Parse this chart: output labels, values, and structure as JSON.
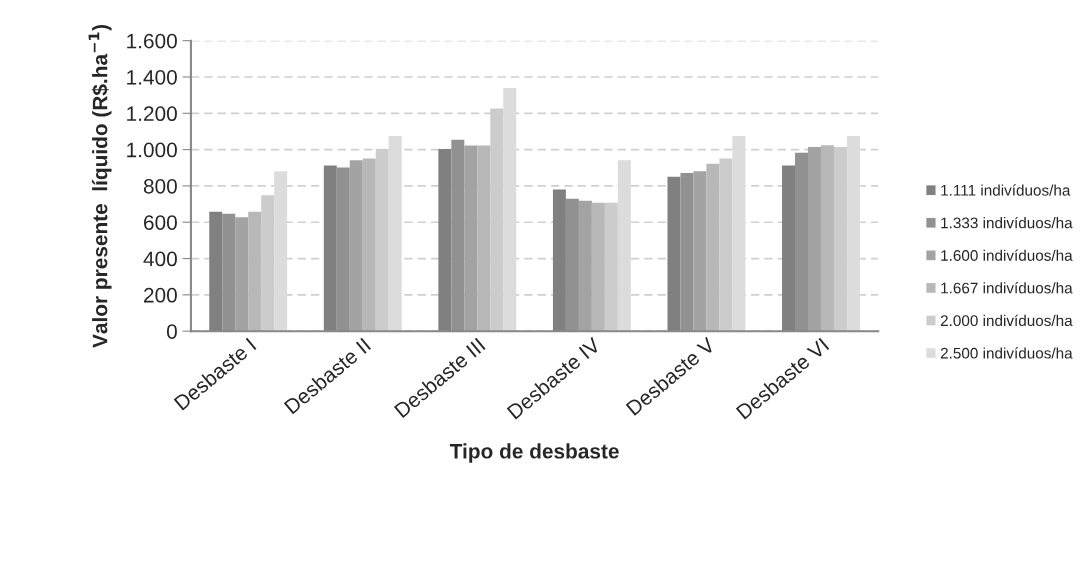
{
  "chart_data": {
    "type": "bar",
    "xlabel": "Tipo de desbaste",
    "ylabel": "Valor presente  líquido (R$.ha$^{−1}$)",
    "categories": [
      "Desbaste I",
      "Desbaste II",
      "Desbaste III",
      "Desbaste IV",
      "Desbaste V",
      "Desbaste VI"
    ],
    "series": [
      {
        "name": "1.111 indivíduos/ha",
        "color": "#808080",
        "values": [
          658,
          912,
          1003,
          780,
          851,
          912
        ]
      },
      {
        "name": "1.333 indivíduos/ha",
        "color": "#919191",
        "values": [
          647,
          902,
          1054,
          729,
          871,
          983
        ]
      },
      {
        "name": "1.600 indivíduos/ha",
        "color": "#a3a3a3",
        "values": [
          627,
          942,
          1022,
          719,
          881,
          1014
        ]
      },
      {
        "name": "1.667 indivíduos/ha",
        "color": "#b8b8b8",
        "values": [
          658,
          951,
          1022,
          707,
          922,
          1024
        ]
      },
      {
        "name": "2.000 indivíduos/ha",
        "color": "#cccccc",
        "values": [
          749,
          1003,
          1227,
          707,
          951,
          1014
        ]
      },
      {
        "name": "2.500 indivíduos/ha",
        "color": "#dcdcdc",
        "values": [
          881,
          1075,
          1339,
          942,
          1075,
          1075
        ]
      }
    ],
    "ylim": [
      0,
      1600
    ],
    "yticks": [
      0,
      200,
      400,
      600,
      800,
      {
        "value": 1000,
        "label": "1.000"
      },
      {
        "value": 1200,
        "label": "1.200"
      },
      {
        "value": 1400,
        "label": "1.400"
      },
      {
        "value": 1600,
        "label": "1.600"
      }
    ],
    "grid": "y",
    "legend": "right"
  }
}
